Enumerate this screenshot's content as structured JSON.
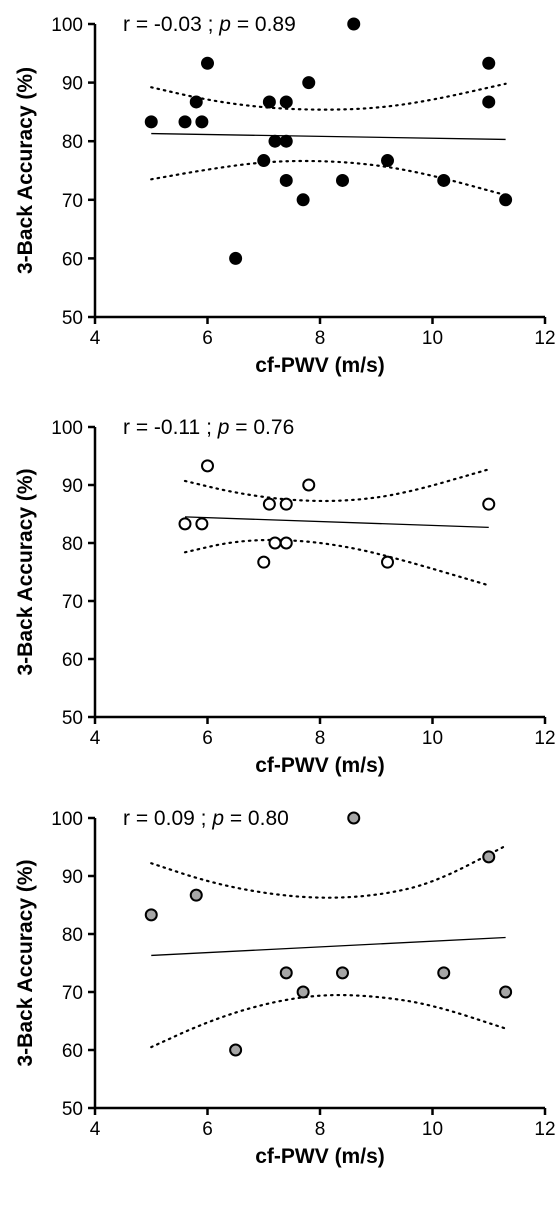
{
  "chart_data": [
    {
      "type": "scatter",
      "xlabel": "cf-PWV (m/s)",
      "ylabel": "3-Back Accuracy (%)",
      "xlim": [
        4,
        12
      ],
      "ylim": [
        50,
        100
      ],
      "xticks": [
        "4",
        "6",
        "8",
        "10",
        "12"
      ],
      "yticks": [
        "50",
        "60",
        "70",
        "80",
        "90",
        "100"
      ],
      "annotation": {
        "r_part": "r = -0.03 ; ",
        "p_letter": "p",
        "p_part": " = 0.89"
      },
      "marker": {
        "fill": "#000000",
        "stroke": "#000000"
      },
      "points": [
        {
          "x": 5.0,
          "y": 83.3
        },
        {
          "x": 5.6,
          "y": 83.3
        },
        {
          "x": 5.8,
          "y": 86.7
        },
        {
          "x": 5.9,
          "y": 83.3
        },
        {
          "x": 6.0,
          "y": 93.3
        },
        {
          "x": 6.5,
          "y": 60.0
        },
        {
          "x": 7.0,
          "y": 76.7
        },
        {
          "x": 7.1,
          "y": 86.7
        },
        {
          "x": 7.2,
          "y": 80.0
        },
        {
          "x": 7.4,
          "y": 86.7
        },
        {
          "x": 7.4,
          "y": 80.0
        },
        {
          "x": 7.4,
          "y": 73.3
        },
        {
          "x": 7.7,
          "y": 70.0
        },
        {
          "x": 7.8,
          "y": 90.0
        },
        {
          "x": 8.4,
          "y": 73.3
        },
        {
          "x": 8.6,
          "y": 100.0
        },
        {
          "x": 9.2,
          "y": 76.7
        },
        {
          "x": 10.2,
          "y": 73.3
        },
        {
          "x": 11.0,
          "y": 93.3
        },
        {
          "x": 11.0,
          "y": 86.7
        },
        {
          "x": 11.3,
          "y": 70.0
        }
      ],
      "fit": [
        {
          "x": 5.0,
          "y": 81.3
        },
        {
          "x": 11.3,
          "y": 80.3
        }
      ],
      "ci_upper": [
        {
          "x": 5.0,
          "y": 89.2
        },
        {
          "x": 6.0,
          "y": 87.0
        },
        {
          "x": 7.0,
          "y": 85.7
        },
        {
          "x": 8.0,
          "y": 85.3
        },
        {
          "x": 9.0,
          "y": 85.6
        },
        {
          "x": 10.0,
          "y": 87.0
        },
        {
          "x": 11.3,
          "y": 89.8
        }
      ],
      "ci_lower": [
        {
          "x": 5.0,
          "y": 73.5
        },
        {
          "x": 6.0,
          "y": 75.2
        },
        {
          "x": 7.0,
          "y": 76.5
        },
        {
          "x": 8.0,
          "y": 76.7
        },
        {
          "x": 9.0,
          "y": 76.0
        },
        {
          "x": 10.0,
          "y": 74.2
        },
        {
          "x": 11.3,
          "y": 70.8
        }
      ]
    },
    {
      "type": "scatter",
      "xlabel": "cf-PWV (m/s)",
      "ylabel": "3-Back Accuracy (%)",
      "xlim": [
        4,
        12
      ],
      "ylim": [
        50,
        100
      ],
      "xticks": [
        "4",
        "6",
        "8",
        "10",
        "12"
      ],
      "yticks": [
        "50",
        "60",
        "70",
        "80",
        "90",
        "100"
      ],
      "annotation": {
        "r_part": "r = -0.11 ; ",
        "p_letter": "p",
        "p_part": " = 0.76"
      },
      "marker": {
        "fill": "#ffffff",
        "stroke": "#000000"
      },
      "points": [
        {
          "x": 5.6,
          "y": 83.3
        },
        {
          "x": 5.9,
          "y": 83.3
        },
        {
          "x": 6.0,
          "y": 93.3
        },
        {
          "x": 7.0,
          "y": 76.7
        },
        {
          "x": 7.1,
          "y": 86.7
        },
        {
          "x": 7.2,
          "y": 80.0
        },
        {
          "x": 7.4,
          "y": 86.7
        },
        {
          "x": 7.4,
          "y": 80.0
        },
        {
          "x": 7.8,
          "y": 90.0
        },
        {
          "x": 9.2,
          "y": 76.7
        },
        {
          "x": 11.0,
          "y": 86.7
        }
      ],
      "fit": [
        {
          "x": 5.6,
          "y": 84.5
        },
        {
          "x": 11.0,
          "y": 82.7
        }
      ],
      "ci_upper": [
        {
          "x": 5.6,
          "y": 90.7
        },
        {
          "x": 6.5,
          "y": 88.6
        },
        {
          "x": 7.5,
          "y": 87.3
        },
        {
          "x": 8.5,
          "y": 87.2
        },
        {
          "x": 9.5,
          "y": 88.5
        },
        {
          "x": 11.0,
          "y": 92.7
        }
      ],
      "ci_lower": [
        {
          "x": 5.6,
          "y": 78.4
        },
        {
          "x": 6.5,
          "y": 80.4
        },
        {
          "x": 7.5,
          "y": 80.6
        },
        {
          "x": 8.5,
          "y": 79.4
        },
        {
          "x": 9.5,
          "y": 77.0
        },
        {
          "x": 11.0,
          "y": 72.7
        }
      ]
    },
    {
      "type": "scatter",
      "xlabel": "cf-PWV (m/s)",
      "ylabel": "3-Back Accuracy (%)",
      "xlim": [
        4,
        12
      ],
      "ylim": [
        50,
        100
      ],
      "xticks": [
        "4",
        "6",
        "8",
        "10",
        "12"
      ],
      "yticks": [
        "50",
        "60",
        "70",
        "80",
        "90",
        "100"
      ],
      "annotation": {
        "r_part": "r = 0.09 ; ",
        "p_letter": "p",
        "p_part": " = 0.80"
      },
      "marker": {
        "fill": "#a6a6a6",
        "stroke": "#000000"
      },
      "points": [
        {
          "x": 5.0,
          "y": 83.3
        },
        {
          "x": 5.8,
          "y": 86.7
        },
        {
          "x": 6.5,
          "y": 60.0
        },
        {
          "x": 7.4,
          "y": 73.3
        },
        {
          "x": 7.7,
          "y": 70.0
        },
        {
          "x": 8.4,
          "y": 73.3
        },
        {
          "x": 8.6,
          "y": 100.0
        },
        {
          "x": 10.2,
          "y": 73.3
        },
        {
          "x": 11.0,
          "y": 93.3
        },
        {
          "x": 11.3,
          "y": 70.0
        }
      ],
      "fit": [
        {
          "x": 5.0,
          "y": 76.3
        },
        {
          "x": 11.3,
          "y": 79.4
        }
      ],
      "ci_upper": [
        {
          "x": 5.0,
          "y": 92.2
        },
        {
          "x": 6.0,
          "y": 89.0
        },
        {
          "x": 7.0,
          "y": 87.0
        },
        {
          "x": 8.0,
          "y": 86.1
        },
        {
          "x": 9.0,
          "y": 86.6
        },
        {
          "x": 10.0,
          "y": 88.7
        },
        {
          "x": 11.3,
          "y": 95.2
        }
      ],
      "ci_lower": [
        {
          "x": 5.0,
          "y": 60.5
        },
        {
          "x": 6.0,
          "y": 64.9
        },
        {
          "x": 7.0,
          "y": 68.0
        },
        {
          "x": 8.0,
          "y": 69.6
        },
        {
          "x": 9.0,
          "y": 69.3
        },
        {
          "x": 10.0,
          "y": 67.8
        },
        {
          "x": 11.3,
          "y": 63.7
        }
      ]
    }
  ]
}
